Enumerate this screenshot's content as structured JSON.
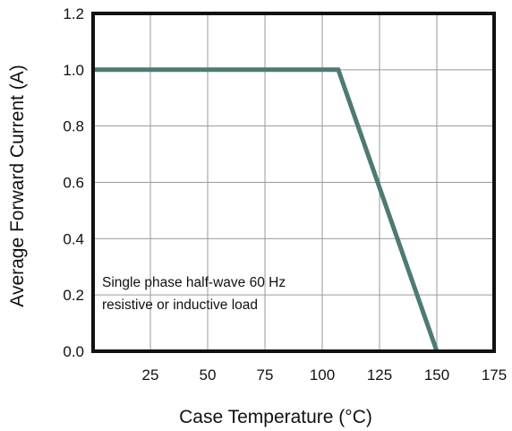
{
  "chart_data": {
    "type": "line",
    "title": "",
    "xlabel": "Case Temperature (°C)",
    "ylabel": "Average Forward Current (A)",
    "xlim": [
      0,
      175
    ],
    "ylim": [
      0,
      1.2
    ],
    "x_ticks": [
      25,
      50,
      75,
      100,
      125,
      150,
      175
    ],
    "x_tick_labels": [
      "25",
      "50",
      "75",
      "100",
      "125",
      "150",
      "175"
    ],
    "y_ticks": [
      0.0,
      0.2,
      0.4,
      0.6,
      0.8,
      1.0,
      1.2
    ],
    "y_tick_labels": [
      "0.0",
      "0.2",
      "0.4",
      "0.6",
      "0.8",
      "1.0",
      "1.2"
    ],
    "grid": true,
    "line_color": "#4f7a73",
    "series": [
      {
        "x": [
          0,
          107,
          150
        ],
        "y": [
          1.0,
          1.0,
          0.0
        ]
      }
    ],
    "annotation": {
      "lines": [
        "Single phase half-wave 60 Hz",
        "resistive or inductive load"
      ]
    }
  }
}
